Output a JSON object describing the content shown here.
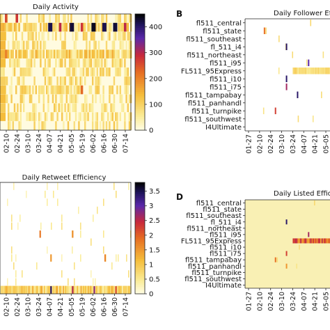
{
  "chart_data": [
    {
      "type": "heatmap",
      "panel_letter": "",
      "title": "Daily Activity",
      "x_ticks": [
        "02-10",
        "02-24",
        "03-10",
        "03-24",
        "04-07",
        "04-21",
        "05-05",
        "05-19",
        "06-02",
        "06-16",
        "06-30",
        "07-14"
      ],
      "y_ticks": [],
      "colorbar": {
        "ticks": [
          0,
          100,
          200,
          300,
          400
        ],
        "range": [
          0,
          450
        ]
      },
      "background": "#fffbe0",
      "rows": 13,
      "row_density": [
        0.35,
        0.9,
        0.55,
        0.45,
        0.95,
        0.6,
        0.55,
        0.5,
        0.6,
        0.45,
        0.45,
        0.55,
        0.4
      ],
      "hot_cells": [
        {
          "row": 0,
          "x": "02-10",
          "value": 260
        },
        {
          "row": 0,
          "x": "02-24",
          "value": 280
        },
        {
          "row": 1,
          "x": "04-07",
          "value": 420
        },
        {
          "row": 1,
          "x": "04-21",
          "value": 300
        },
        {
          "row": 1,
          "x": "05-05",
          "value": 430
        },
        {
          "row": 1,
          "x": "05-19",
          "value": 280
        },
        {
          "row": 1,
          "x": "06-02",
          "value": 440
        },
        {
          "row": 1,
          "x": "06-16",
          "value": 420
        },
        {
          "row": 1,
          "x": "06-30",
          "value": 430
        },
        {
          "row": 1,
          "x": "07-14",
          "value": 300
        },
        {
          "row": 4,
          "x": "02-10",
          "value": 200
        },
        {
          "row": 8,
          "x": "05-19",
          "value": 230
        }
      ]
    },
    {
      "type": "heatmap",
      "panel_letter": "B",
      "title": "Daily Follower Eff",
      "x_ticks": [
        "01-27",
        "02-10",
        "02-24",
        "03-10",
        "03-24",
        "04-07",
        "04-21",
        "05-05"
      ],
      "y_ticks": [
        "fl511_central",
        "fl511_state",
        "fl511_southeast",
        "fl_511_i4",
        "fl511_northeast",
        "fl511_i95",
        "FL511_95Express",
        "fl511_i10",
        "fl511_i75",
        "fl511_tampabay",
        "fl511_panhandl",
        "fl511_turnpike",
        "fl511_southwest",
        "I4Ultimate"
      ],
      "background": "#ffffff",
      "band": {
        "row": "FL511_95Express",
        "from": "03-24",
        "to": "05-05"
      },
      "hot_cells": [
        {
          "row": "fl511_state",
          "x": "02-10",
          "value": 0.5
        },
        {
          "row": "fl_511_i4",
          "x": "03-10",
          "value": 0.9
        },
        {
          "row": "fl511_i95",
          "x": "04-07",
          "value": 0.8
        },
        {
          "row": "fl511_i10",
          "x": "03-10",
          "value": 0.9
        },
        {
          "row": "fl511_i75",
          "x": "03-10",
          "value": 0.7
        },
        {
          "row": "fl511_tampabay",
          "x": "03-24",
          "value": 0.9
        },
        {
          "row": "fl511_turnpike",
          "x": "02-24",
          "value": 0.6
        }
      ]
    },
    {
      "type": "heatmap",
      "panel_letter": "",
      "title": "Daily Retweet Efficiency",
      "x_ticks": [
        "02-10",
        "02-24",
        "03-10",
        "03-24",
        "04-07",
        "04-21",
        "05-05",
        "05-19",
        "06-02",
        "06-16",
        "06-30",
        "07-14"
      ],
      "y_ticks": [],
      "colorbar": {
        "ticks": [
          0.0,
          0.5,
          1.0,
          1.5,
          2.0,
          2.5,
          3.0,
          3.5
        ],
        "range": [
          0,
          3.8
        ]
      },
      "background": "#ffffff",
      "rows": 14,
      "bottom_row": "dense",
      "hot_cells": [
        {
          "row": 6,
          "x": "03-24",
          "value": 1.8
        },
        {
          "row": 6,
          "x": "05-05",
          "value": 1.6
        },
        {
          "row": 9,
          "x": "04-07",
          "value": 1.5
        },
        {
          "row": 9,
          "x": "06-16",
          "value": 1.7
        },
        {
          "row": 13,
          "x": "04-07",
          "value": 3.4
        },
        {
          "row": 13,
          "x": "05-05",
          "value": 2.6
        },
        {
          "row": 13,
          "x": "06-02",
          "value": 2.8
        },
        {
          "row": 13,
          "x": "06-30",
          "value": 2.2
        }
      ]
    },
    {
      "type": "heatmap",
      "panel_letter": "D",
      "title": "Daily Listed Effici",
      "x_ticks": [
        "01-27",
        "02-10",
        "02-24",
        "03-10",
        "03-24",
        "04-07",
        "04-21",
        "05-05"
      ],
      "y_ticks": [
        "fl511_central",
        "fl511_state",
        "fl511_southeast",
        "fl_511_i4",
        "fl511_northeast",
        "fl511_i95",
        "FL511_95Express",
        "fl511_i10",
        "fl511_i75",
        "fl511_tampabay",
        "fl511_panhandl",
        "fl511_turnpike",
        "fl511_southwest",
        "I4Ultimate"
      ],
      "background": "#f9f0b4",
      "band": {
        "row": "FL511_95Express",
        "from": "03-24",
        "to": "05-05"
      },
      "hot_cells": [
        {
          "row": "fl_511_i4",
          "x": "03-10",
          "value": 0.9
        },
        {
          "row": "fl511_i95",
          "x": "04-07",
          "value": 0.7
        },
        {
          "row": "fl511_i75",
          "x": "03-10",
          "value": 0.6
        },
        {
          "row": "fl511_tampabay",
          "x": "02-24",
          "value": 0.5
        },
        {
          "row": "fl511_panhandl",
          "x": "03-10",
          "value": 0.4
        }
      ]
    }
  ]
}
